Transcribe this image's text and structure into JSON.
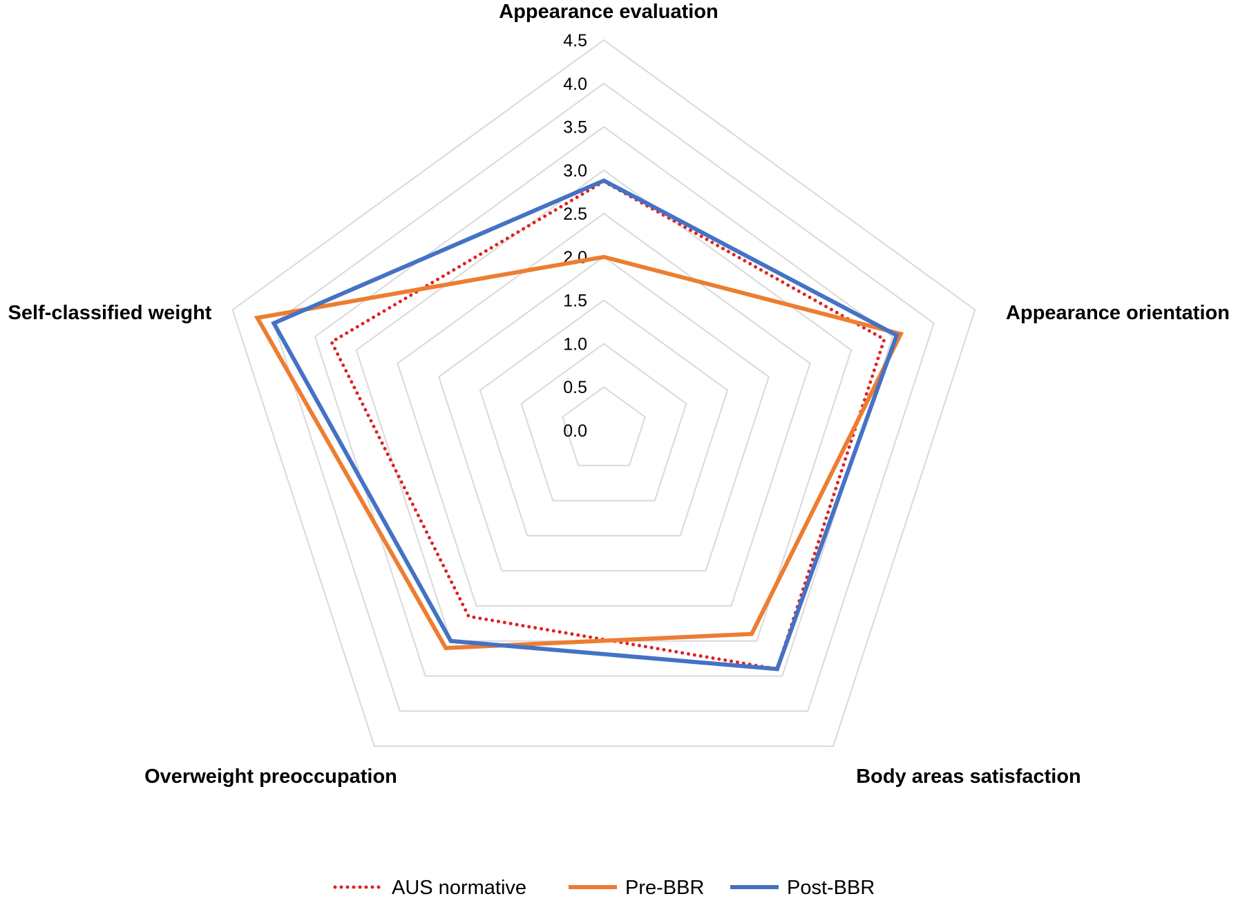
{
  "chart_data": {
    "type": "radar",
    "title": "",
    "axes": [
      "Appearance evaluation",
      "Appearance orientation",
      "Body areas satisfaction",
      "Overweight preoccupation",
      "Self-classified weight"
    ],
    "rlim": [
      0,
      4.5
    ],
    "ticks": [
      "0.0",
      "0.5",
      "1.0",
      "1.5",
      "2.0",
      "2.5",
      "3.0",
      "3.5",
      "4.0",
      "4.5"
    ],
    "grid": true,
    "legend_position": "bottom",
    "series": [
      {
        "name": "AUS normative",
        "values": [
          2.87,
          3.4,
          3.4,
          2.65,
          3.3
        ],
        "color": "#e02020",
        "style": "dotted"
      },
      {
        "name": "Pre-BBR",
        "values": [
          2.0,
          3.6,
          2.9,
          3.1,
          4.2
        ],
        "color": "#ed7d31",
        "style": "solid"
      },
      {
        "name": "Post-BBR",
        "values": [
          2.88,
          3.55,
          3.4,
          3.0,
          4.0
        ],
        "color": "#4472c4",
        "style": "solid"
      }
    ]
  }
}
